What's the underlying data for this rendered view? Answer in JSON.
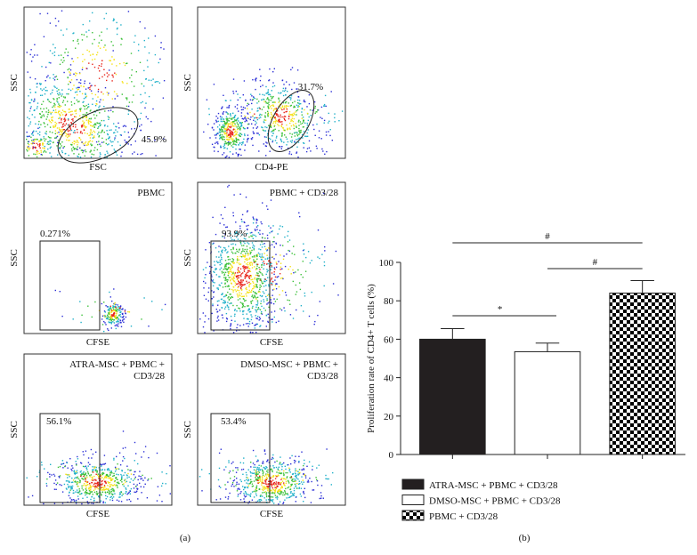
{
  "flow_panels": [
    {
      "y_label": "SSC",
      "x_label": "FSC",
      "gate_label": "45.9%"
    },
    {
      "y_label": "SSC",
      "x_label": "CD4-PE",
      "gate_label": "31.7%"
    },
    {
      "y_label": "SSC",
      "x_label": "CFSE",
      "gate_label": "0.271%",
      "title": [
        "PBMC"
      ]
    },
    {
      "y_label": "SSC",
      "x_label": "CFSE",
      "gate_label": "93.9%",
      "title": [
        "PBMC + CD3/28"
      ]
    },
    {
      "y_label": "SSC",
      "x_label": "CFSE",
      "gate_label": "56.1%",
      "title": [
        "ATRA-MSC + PBMC +",
        "CD3/28"
      ]
    },
    {
      "y_label": "SSC",
      "x_label": "CFSE",
      "gate_label": "53.4%",
      "title": [
        "DMSO-MSC + PBMC +",
        "CD3/28"
      ]
    }
  ],
  "panel_labels": [
    "(a)",
    "(b)"
  ],
  "chart_data": {
    "type": "bar",
    "y_label": "Proliferation rate of CD4+ T cells (%)",
    "series": [
      {
        "name": "ATRA-MSC + PBMC + CD3/28",
        "color": "#231f20",
        "values": [
          60
        ],
        "errors": [
          5.5
        ]
      },
      {
        "name": "DMSO-MSC + PBMC + CD3/28",
        "color": "#ffffff",
        "values": [
          53.5
        ],
        "errors": [
          4.5
        ]
      },
      {
        "name": "PBMC + CD3/28",
        "color": "#000000",
        "pattern": "checker",
        "values": [
          84
        ],
        "errors": [
          6.5
        ]
      }
    ],
    "annotations": [
      "*",
      "#",
      "#"
    ],
    "ylim": [
      0,
      100
    ],
    "yticks": [
      0,
      20,
      40,
      60,
      80,
      100
    ]
  }
}
